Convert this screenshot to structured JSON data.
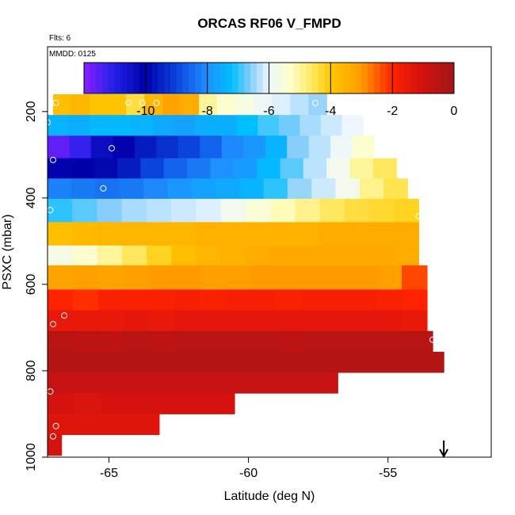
{
  "chart_data": {
    "type": "heatmap",
    "title": "ORCAS RF06 V_FMPD",
    "notes": {
      "flights": "Flts: 6",
      "date": "MMDD: 0125"
    },
    "xlabel": "Latitude (deg N)",
    "ylabel": "PSXC (mbar)",
    "xlim": [
      -67.2,
      -51.3
    ],
    "ylim": [
      1000,
      50
    ],
    "y_reversed": true,
    "x_ticks": [
      -65,
      -60,
      -55
    ],
    "x_tick_labels": [
      "-65",
      "-60",
      "-55"
    ],
    "y_ticks": [
      200,
      400,
      600,
      800,
      1000
    ],
    "y_tick_labels": [
      "200",
      "400",
      "600",
      "800",
      "1000"
    ],
    "colorbar": {
      "min": -12,
      "max": 0,
      "ticks": [
        -10,
        -8,
        -6,
        -4,
        -2,
        0
      ],
      "tick_labels": [
        "-10",
        "-8",
        "-6",
        "-4",
        "-2",
        "0"
      ],
      "stops": [
        [
          -12,
          "#8a1fff"
        ],
        [
          -11,
          "#2020e8"
        ],
        [
          -10,
          "#0000a8"
        ],
        [
          -9,
          "#0a44dd"
        ],
        [
          -8,
          "#1e90ff"
        ],
        [
          -7.2,
          "#00bfff"
        ],
        [
          -6.6,
          "#87cefa"
        ],
        [
          -6,
          "#eef7ff"
        ],
        [
          -5.3,
          "#ffffc8"
        ],
        [
          -4.6,
          "#ffe860"
        ],
        [
          -4,
          "#ffc800"
        ],
        [
          -3,
          "#ff9a00"
        ],
        [
          -2,
          "#ff2200"
        ],
        [
          -1,
          "#d01010"
        ],
        [
          0,
          "#a01818"
        ]
      ]
    },
    "rows": [
      {
        "p_top": 160,
        "p_bot": 208,
        "lat_start": -67.0,
        "lat_end": -57.2,
        "values": [
          -3.8,
          -3.6,
          -3.9,
          -3.9,
          -4.4,
          -3.6,
          -3.2,
          -3.4,
          -5.0,
          -5.4,
          -5.6,
          -5.9,
          -6.1,
          -6.3,
          -6.5
        ]
      },
      {
        "p_top": 208,
        "p_bot": 256,
        "lat_start": -67.2,
        "lat_end": -55.9,
        "values": [
          -7.4,
          -7.5,
          -7.3,
          -7.3,
          -7.4,
          -7.6,
          -7.7,
          -7.5,
          -7.5,
          -7.2,
          -6.9,
          -6.7,
          -6.4,
          -6.2,
          -6.0
        ]
      },
      {
        "p_top": 256,
        "p_bot": 308,
        "lat_start": -67.2,
        "lat_end": -55.5,
        "values": [
          -11.6,
          -11.2,
          -10.4,
          -10.1,
          -9.6,
          -9.3,
          -9.0,
          -8.6,
          -8.1,
          -7.9,
          -7.4,
          -6.6,
          -6.3,
          -5.9,
          -5.4
        ]
      },
      {
        "p_top": 308,
        "p_bot": 355,
        "lat_start": -67.2,
        "lat_end": -54.7,
        "values": [
          -10.1,
          -10.0,
          -9.9,
          -9.6,
          -9.0,
          -8.6,
          -8.3,
          -8.0,
          -7.8,
          -7.3,
          -6.8,
          -6.3,
          -5.8,
          -5.0,
          -4.6
        ]
      },
      {
        "p_top": 355,
        "p_bot": 402,
        "lat_start": -67.2,
        "lat_end": -54.3,
        "values": [
          -8.2,
          -8.3,
          -8.4,
          -8.3,
          -8.1,
          -7.9,
          -7.7,
          -7.6,
          -7.4,
          -7.0,
          -6.5,
          -6.2,
          -5.8,
          -4.9,
          -4.5
        ]
      },
      {
        "p_top": 402,
        "p_bot": 456,
        "lat_start": -67.2,
        "lat_end": -53.9,
        "values": [
          -7.0,
          -6.8,
          -6.6,
          -6.4,
          -6.3,
          -6.2,
          -6.1,
          -5.8,
          -5.5,
          -5.2,
          -4.9,
          -4.6,
          -4.4,
          -4.3,
          -4.2
        ]
      },
      {
        "p_top": 456,
        "p_bot": 510,
        "lat_start": -67.2,
        "lat_end": -53.9,
        "values": [
          -3.8,
          -3.7,
          -3.6,
          -3.6,
          -3.6,
          -3.6,
          -3.5,
          -3.5,
          -3.5,
          -3.5,
          -3.5,
          -3.4,
          -3.4,
          -3.4,
          -3.4
        ]
      },
      {
        "p_top": 510,
        "p_bot": 556,
        "lat_start": -67.2,
        "lat_end": -53.9,
        "values": [
          -5.7,
          -5.4,
          -5.0,
          -4.6,
          -4.2,
          -3.8,
          -3.6,
          -3.5,
          -3.4,
          -3.3,
          -3.3,
          -3.3,
          -3.3,
          -3.3,
          -3.4
        ]
      },
      {
        "p_top": 556,
        "p_bot": 612,
        "lat_start": -67.2,
        "lat_end": -53.6,
        "values": [
          -3.2,
          -3.1,
          -3.2,
          -3.1,
          -3.0,
          -3.0,
          -3.1,
          -3.1,
          -3.0,
          -3.0,
          -3.0,
          -3.0,
          -3.0,
          -3.1,
          -2.3
        ]
      },
      {
        "p_top": 612,
        "p_bot": 660,
        "lat_start": -67.2,
        "lat_end": -53.6,
        "values": [
          -2.0,
          -2.1,
          -1.9,
          -1.9,
          -1.9,
          -1.8,
          -1.9,
          -1.8,
          -1.8,
          -1.9,
          -1.8,
          -1.8,
          -1.8,
          -1.9,
          -2.0
        ]
      },
      {
        "p_top": 660,
        "p_bot": 708,
        "lat_start": -67.2,
        "lat_end": -53.6,
        "values": [
          -1.5,
          -1.5,
          -1.5,
          -1.4,
          -1.5,
          -1.4,
          -1.4,
          -1.4,
          -1.4,
          -1.4,
          -1.4,
          -1.4,
          -1.4,
          -1.4,
          -1.5
        ]
      },
      {
        "p_top": 708,
        "p_bot": 756,
        "lat_start": -67.2,
        "lat_end": -53.4,
        "values": [
          -0.5,
          -0.6,
          -0.6,
          -0.5,
          -0.6,
          -0.5,
          -0.5,
          -0.5,
          -0.5,
          -0.6,
          -0.5,
          -0.5,
          -0.5,
          -0.5,
          -0.5
        ]
      },
      {
        "p_top": 756,
        "p_bot": 804,
        "lat_start": -67.2,
        "lat_end": -53.0,
        "values": [
          -0.4,
          -0.4,
          -0.4,
          -0.4,
          -0.4,
          -0.4,
          -0.4,
          -0.4,
          -0.4,
          -0.4,
          -0.4,
          -0.4,
          -0.4,
          -0.4,
          -0.4
        ]
      },
      {
        "p_top": 804,
        "p_bot": 852,
        "lat_start": -67.2,
        "lat_end": -56.8,
        "values": [
          -0.8,
          -0.8,
          -0.8,
          -0.8,
          -0.8,
          -0.8,
          -0.8,
          -0.8,
          -0.8,
          -0.8,
          -0.8
        ]
      },
      {
        "p_top": 852,
        "p_bot": 900,
        "lat_start": -67.2,
        "lat_end": -60.5,
        "values": [
          -1.1,
          -1.2,
          -1.1,
          -1.1,
          -1.1,
          -1.1,
          -1.1
        ]
      },
      {
        "p_top": 900,
        "p_bot": 948,
        "lat_start": -67.2,
        "lat_end": -63.2,
        "values": [
          -1.3,
          -1.3,
          -1.3,
          -1.3
        ]
      },
      {
        "p_top": 948,
        "p_bot": 996,
        "lat_start": -67.2,
        "lat_end": -66.7,
        "values": [
          -1.1
        ]
      }
    ],
    "points": [
      {
        "lat": -66.9,
        "p": 180
      },
      {
        "lat": -64.3,
        "p": 180
      },
      {
        "lat": -63.8,
        "p": 180
      },
      {
        "lat": -63.3,
        "p": 180
      },
      {
        "lat": -57.6,
        "p": 180
      },
      {
        "lat": -67.2,
        "p": 225
      },
      {
        "lat": -64.9,
        "p": 285
      },
      {
        "lat": -67.0,
        "p": 312
      },
      {
        "lat": -65.2,
        "p": 378
      },
      {
        "lat": -67.1,
        "p": 428
      },
      {
        "lat": -53.9,
        "p": 442
      },
      {
        "lat": -67.1,
        "p": 548
      },
      {
        "lat": -66.6,
        "p": 672
      },
      {
        "lat": -67.0,
        "p": 692
      },
      {
        "lat": -53.4,
        "p": 728
      },
      {
        "lat": -67.1,
        "p": 848
      },
      {
        "lat": -66.9,
        "p": 928
      },
      {
        "lat": -67.0,
        "p": 952
      }
    ],
    "arrow_marker": {
      "lat": -53.0,
      "direction": "down"
    }
  }
}
